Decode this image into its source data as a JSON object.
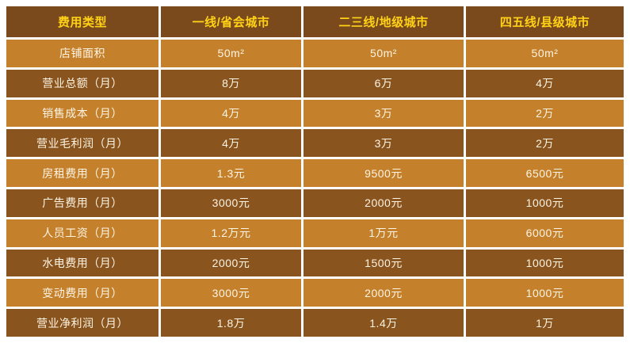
{
  "colors": {
    "page_background": "#ffffff",
    "header_background": "#7a4a1d",
    "header_text": "#ffd215",
    "row_light_background": "#c5802c",
    "row_dark_background": "#8a541f",
    "cell_text": "#fdf4e3",
    "grid_line": "#ffffff"
  },
  "chart_data": {
    "type": "table",
    "title": "",
    "columns": [
      "费用类型",
      "一线/省会城市",
      "二三线/地级城市",
      "四五线/县级城市"
    ],
    "rows": [
      {
        "label": "店铺面积",
        "values": [
          "50m²",
          "50m²",
          "50m²"
        ]
      },
      {
        "label": "营业总额（月）",
        "values": [
          "8万",
          "6万",
          "4万"
        ]
      },
      {
        "label": "销售成本（月）",
        "values": [
          "4万",
          "3万",
          "2万"
        ]
      },
      {
        "label": "营业毛利润（月）",
        "values": [
          "4万",
          "3万",
          "2万"
        ]
      },
      {
        "label": "房租费用（月）",
        "values": [
          "1.3元",
          "9500元",
          "6500元"
        ]
      },
      {
        "label": "广告费用（月）",
        "values": [
          "3000元",
          "2000元",
          "1000元"
        ]
      },
      {
        "label": "人员工资（月）",
        "values": [
          "1.2万元",
          "1万元",
          "6000元"
        ]
      },
      {
        "label": "水电费用（月）",
        "values": [
          "2000元",
          "1500元",
          "1000元"
        ]
      },
      {
        "label": "变动费用（月）",
        "values": [
          "3000元",
          "2000元",
          "1000元"
        ]
      },
      {
        "label": "营业净利润（月）",
        "values": [
          "1.8万",
          "1.4万",
          "1万"
        ]
      }
    ]
  }
}
